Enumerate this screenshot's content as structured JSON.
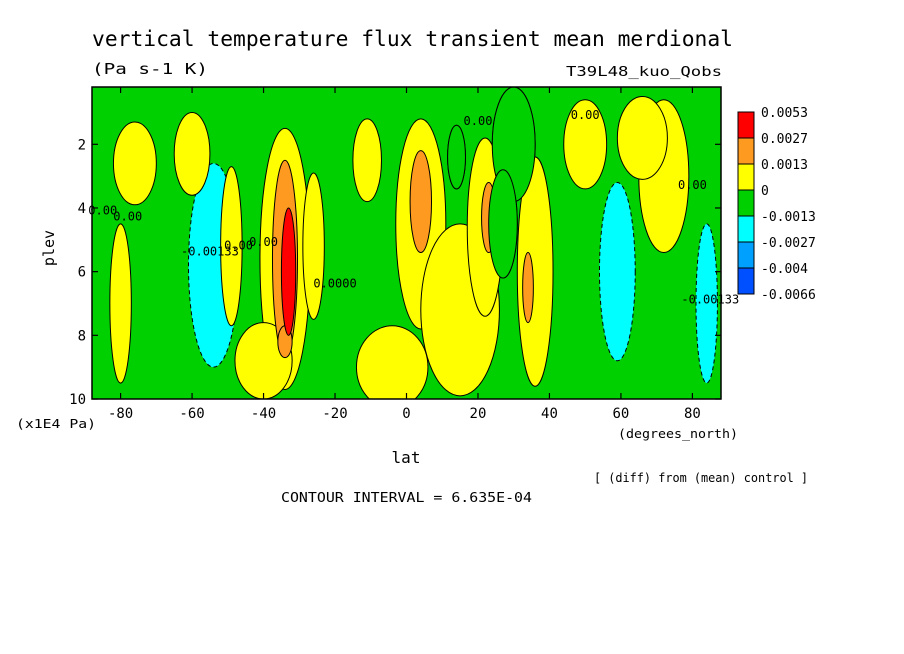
{
  "chart_data": {
    "type": "heatmap",
    "title": "vertical temperature flux transient mean merdional",
    "units": "(Pa s-1 K)",
    "run_label": "T39L48_kuo_Qobs",
    "xlabel": "lat",
    "xunits": "(degrees_north)",
    "ylabel": "plev",
    "yunits": "(x1E4 Pa)",
    "xlim": [
      -88,
      88
    ],
    "ylim": [
      0.2,
      10
    ],
    "y_inverted": true,
    "xticks": [
      -80,
      -60,
      -40,
      -20,
      0,
      20,
      40,
      60,
      80
    ],
    "xtick_labels": [
      "-80",
      "-60",
      "-40",
      "-20",
      "0",
      "20",
      "40",
      "60",
      "80"
    ],
    "yticks": [
      2,
      4,
      6,
      8,
      10
    ],
    "ytick_labels": [
      "2",
      "4",
      "6",
      "8",
      "10"
    ],
    "legend": {
      "position": "right",
      "levels": [
        "0.0053",
        "0.0027",
        "0.0013",
        "0",
        "-0.0013",
        "-0.0027",
        "-0.004",
        "-0.0066"
      ],
      "colors": [
        "#ff0000",
        "#ff9a20",
        "#ffff00",
        "#00d000",
        "#00ffff",
        "#00a0ff",
        "#0050ff"
      ]
    },
    "contour_labels": [
      {
        "text": "0.00",
        "lat": 20,
        "plev": 1.4
      },
      {
        "text": "0.00",
        "lat": 50,
        "plev": 1.2
      },
      {
        "text": "0.00",
        "lat": 80,
        "plev": 3.4
      },
      {
        "text": "0.00",
        "lat": -85,
        "plev": 4.2
      },
      {
        "text": "0.00",
        "lat": -78,
        "plev": 4.4
      },
      {
        "text": "-0.00133",
        "lat": -55,
        "plev": 5.5
      },
      {
        "text": "0.00",
        "lat": -47,
        "plev": 5.3
      },
      {
        "text": "0.00",
        "lat": -40,
        "plev": 5.2
      },
      {
        "text": "0.0000",
        "lat": -20,
        "plev": 6.5
      },
      {
        "text": "-0.00133",
        "lat": 85,
        "plev": 7.0
      }
    ],
    "annotations": [
      "[ (diff) from (mean) control ]",
      "CONTOUR INTERVAL = 6.635E-04"
    ],
    "features": [
      {
        "level": 0,
        "lat": 30,
        "plev": 2.0,
        "wlat": 12,
        "wplev": 3.6
      },
      {
        "level": 0,
        "lat": 27,
        "plev": 4.5,
        "wlat": 8,
        "wplev": 3.4
      },
      {
        "level": 0,
        "lat": 14,
        "plev": 2.4,
        "wlat": 5,
        "wplev": 2.0
      },
      {
        "level": -1,
        "lat": -54,
        "plev": 5.8,
        "wlat": 14,
        "wplev": 6.4
      },
      {
        "level": -1,
        "lat": 59,
        "plev": 6.0,
        "wlat": 10,
        "wplev": 5.6
      },
      {
        "level": -1,
        "lat": 84,
        "plev": 7.0,
        "wlat": 6,
        "wplev": 5.0
      },
      {
        "level": 1,
        "lat": -34,
        "plev": 5.6,
        "wlat": 14,
        "wplev": 8.2
      },
      {
        "level": 1,
        "lat": -76,
        "plev": 2.6,
        "wlat": 12,
        "wplev": 2.6
      },
      {
        "level": 1,
        "lat": -60,
        "plev": 2.3,
        "wlat": 10,
        "wplev": 2.6
      },
      {
        "level": 1,
        "lat": -11,
        "plev": 2.5,
        "wlat": 8,
        "wplev": 2.6
      },
      {
        "level": 1,
        "lat": -26,
        "plev": 5.2,
        "wlat": 6,
        "wplev": 4.6
      },
      {
        "level": 1,
        "lat": -80,
        "plev": 7.0,
        "wlat": 6,
        "wplev": 5.0
      },
      {
        "level": 1,
        "lat": -49,
        "plev": 5.2,
        "wlat": 6,
        "wplev": 5.0
      },
      {
        "level": 1,
        "lat": 4,
        "plev": 4.5,
        "wlat": 14,
        "wplev": 6.6
      },
      {
        "level": 1,
        "lat": 15,
        "plev": 7.2,
        "wlat": 22,
        "wplev": 5.4
      },
      {
        "level": 1,
        "lat": 22,
        "plev": 4.6,
        "wlat": 10,
        "wplev": 5.6
      },
      {
        "level": 1,
        "lat": 36,
        "plev": 6.0,
        "wlat": 10,
        "wplev": 7.2
      },
      {
        "level": 1,
        "lat": 72,
        "plev": 3.0,
        "wlat": 14,
        "wplev": 4.8
      },
      {
        "level": 1,
        "lat": 66,
        "plev": 1.8,
        "wlat": 14,
        "wplev": 2.6
      },
      {
        "level": 1,
        "lat": 50,
        "plev": 2.0,
        "wlat": 12,
        "wplev": 2.8
      },
      {
        "level": 1,
        "lat": -4,
        "plev": 9.0,
        "wlat": 20,
        "wplev": 2.6
      },
      {
        "level": 1,
        "lat": -40,
        "plev": 8.8,
        "wlat": 16,
        "wplev": 2.4
      },
      {
        "level": 2,
        "lat": -34,
        "plev": 5.6,
        "wlat": 7,
        "wplev": 6.2
      },
      {
        "level": 2,
        "lat": 4,
        "plev": 3.8,
        "wlat": 6,
        "wplev": 3.2
      },
      {
        "level": 2,
        "lat": 23,
        "plev": 4.3,
        "wlat": 4,
        "wplev": 2.2
      },
      {
        "level": 2,
        "lat": 34,
        "plev": 6.5,
        "wlat": 3,
        "wplev": 2.2
      },
      {
        "level": 2,
        "lat": -34,
        "plev": 8.2,
        "wlat": 4,
        "wplev": 1.0
      },
      {
        "level": 3,
        "lat": -33,
        "plev": 6.0,
        "wlat": 4,
        "wplev": 4.0
      }
    ]
  }
}
